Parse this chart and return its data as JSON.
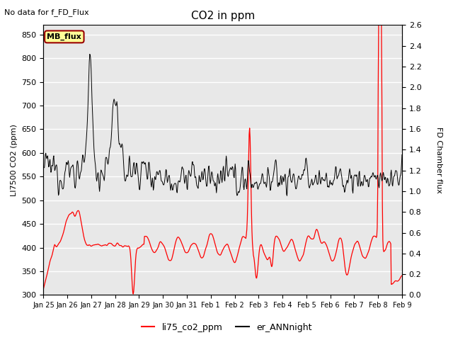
{
  "title": "CO2 in ppm",
  "topleft_text": "No data for f_FD_Flux",
  "ylabel_left": "LI7500 CO2 (ppm)",
  "ylabel_right": "FD Chamber flux",
  "ylim_left": [
    300,
    870
  ],
  "ylim_right": [
    0.0,
    2.6
  ],
  "yticks_left": [
    300,
    350,
    400,
    450,
    500,
    550,
    600,
    650,
    700,
    750,
    800,
    850
  ],
  "yticks_right": [
    0.0,
    0.2,
    0.4,
    0.6,
    0.8,
    1.0,
    1.2,
    1.4,
    1.6,
    1.8,
    2.0,
    2.2,
    2.4,
    2.6
  ],
  "xlim": [
    0,
    352
  ],
  "xtick_labels": [
    "Jan 25",
    "Jan 26",
    "Jan 27",
    "Jan 28",
    "Jan 29",
    "Jan 30",
    "Jan 31",
    "Feb 1",
    "Feb 2",
    "Feb 3",
    "Feb 4",
    "Feb 5",
    "Feb 6",
    "Feb 7",
    "Feb 8",
    "Feb 9"
  ],
  "legend_entries": [
    "li75_co2_ppm",
    "er_ANNnight"
  ],
  "legend_colors": [
    "red",
    "black"
  ],
  "mb_flux_box_color": "#ffff99",
  "mb_flux_border_color": "#990000",
  "background_color": "#e8e8e8",
  "grid_color": "white",
  "title_fontsize": 11,
  "axis_fontsize": 8,
  "tick_fontsize": 8
}
